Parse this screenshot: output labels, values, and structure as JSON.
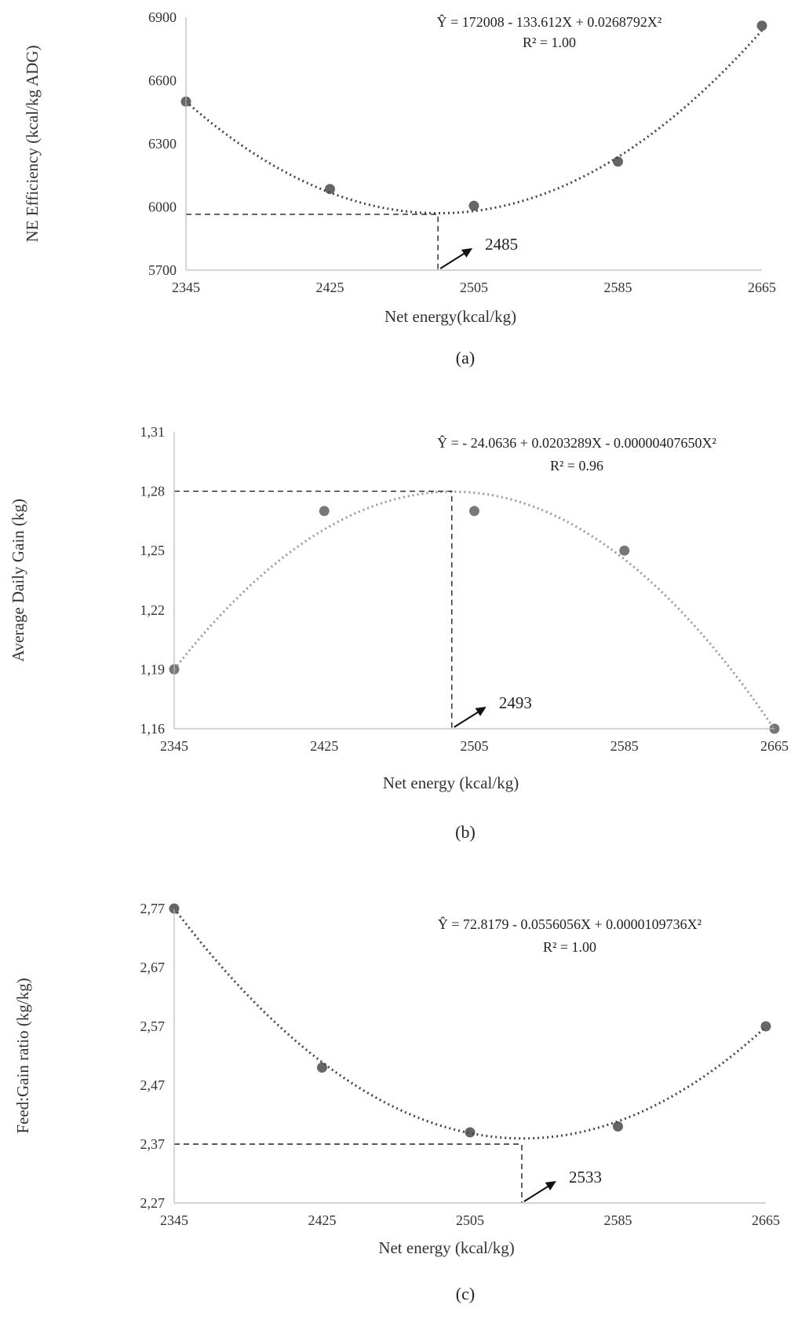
{
  "chart_data": [
    {
      "type": "scatter",
      "panel": "(a)",
      "xlabel": "Net energy(kcal/kg)",
      "ylabel": "NE Efficiency (kcal/kg ADG)",
      "equation": "Ŷ = 172008 - 133.612X + 0.0268792X²",
      "r2": "R² = 1.00",
      "optimum": {
        "x": 2485,
        "y": 5965,
        "label": "2485"
      },
      "xlim": [
        2345,
        2665
      ],
      "ylim": [
        5700,
        6900
      ],
      "xticks": [
        "2345",
        "2425",
        "2505",
        "2585",
        "2665"
      ],
      "yticks": [
        "5700",
        "6000",
        "6300",
        "6600",
        "6900"
      ],
      "points": [
        [
          2345,
          6500
        ],
        [
          2425,
          6085
        ],
        [
          2505,
          6005
        ],
        [
          2585,
          6215
        ],
        [
          2665,
          6860
        ]
      ],
      "fit": {
        "a": 172008,
        "b": -133.612,
        "c": 0.0268792,
        "ref": 6500
      },
      "grid": false
    },
    {
      "type": "scatter",
      "panel": "(b)",
      "xlabel": "Net energy (kcal/kg)",
      "ylabel": "Average Daily Gain  (kg)",
      "equation": "Ŷ = - 24.0636 + 0.0203289X - 0.00000407650X²",
      "r2": "R² = 0.96",
      "optimum": {
        "x": 2493,
        "y": 1.28,
        "label": "2493"
      },
      "xlim": [
        2345,
        2665
      ],
      "ylim": [
        1.16,
        1.31
      ],
      "xticks": [
        "2345",
        "2425",
        "2505",
        "2585",
        "2665"
      ],
      "yticks": [
        "1,16",
        "1,19",
        "1,22",
        "1,25",
        "1,28",
        "1,31"
      ],
      "points": [
        [
          2345,
          1.19
        ],
        [
          2425,
          1.27
        ],
        [
          2505,
          1.27
        ],
        [
          2585,
          1.25
        ],
        [
          2665,
          1.16
        ]
      ],
      "fit": {
        "a": -24.0636,
        "b": 0.0203289,
        "c": -4.0765e-06,
        "ref": 1.19
      },
      "grid": false
    },
    {
      "type": "scatter",
      "panel": "(c)",
      "xlabel": "Net energy (kcal/kg)",
      "ylabel": "Feed:Gain ratio (kg/kg)",
      "equation": "Ŷ = 72.8179 - 0.0556056X + 0.0000109736X²",
      "r2": "R² = 1.00",
      "optimum": {
        "x": 2533,
        "y": 2.37,
        "label": "2533"
      },
      "xlim": [
        2345,
        2665
      ],
      "ylim": [
        2.27,
        2.77
      ],
      "xticks": [
        "2345",
        "2425",
        "2505",
        "2585",
        "2665"
      ],
      "yticks": [
        "2,27",
        "2,37",
        "2,47",
        "2,57",
        "2,67",
        "2,77"
      ],
      "points": [
        [
          2345,
          2.77
        ],
        [
          2425,
          2.5
        ],
        [
          2505,
          2.39
        ],
        [
          2585,
          2.4
        ],
        [
          2665,
          2.57
        ]
      ],
      "fit": {
        "a": 72.8179,
        "b": -0.0556056,
        "c": 1.09736e-05,
        "ref": 2.77
      },
      "grid": false
    }
  ]
}
